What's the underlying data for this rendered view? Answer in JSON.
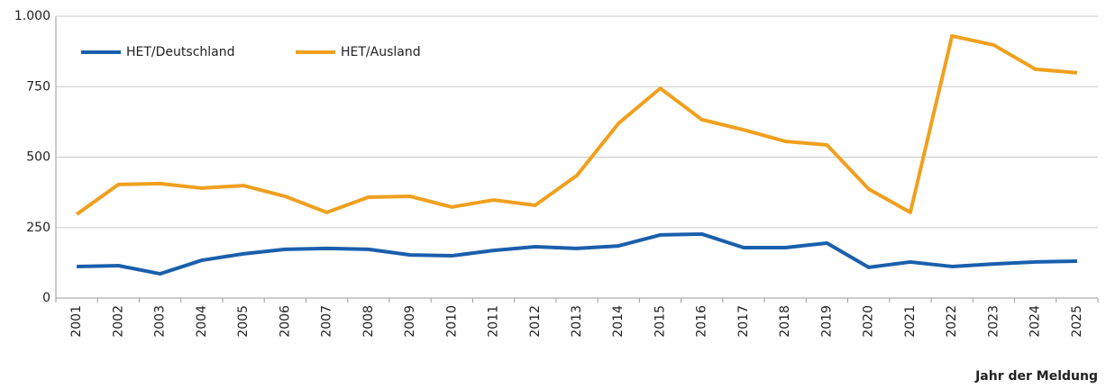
{
  "chart_data": {
    "type": "line",
    "x_label": "Jahr der Meldung",
    "categories": [
      "2001",
      "2002",
      "2003",
      "2004",
      "2005",
      "2006",
      "2007",
      "2008",
      "2009",
      "2010",
      "2011",
      "2012",
      "2013",
      "2014",
      "2015",
      "2016",
      "2017",
      "2018",
      "2019",
      "2020",
      "2021",
      "2022",
      "2023",
      "2024",
      "2025"
    ],
    "series": [
      {
        "name": "HET/Deutschland",
        "color": "#1a5fac",
        "values": [
          112,
          115,
          86,
          134,
          157,
          173,
          176,
          173,
          153,
          150,
          169,
          182,
          176,
          185,
          224,
          227,
          179,
          179,
          195,
          109,
          128,
          112,
          121,
          128,
          131
        ]
      },
      {
        "name": "HET/Ausland",
        "color": "#f0a01e",
        "values": [
          297,
          403,
          406,
          390,
          399,
          361,
          304,
          358,
          361,
          323,
          348,
          329,
          435,
          620,
          744,
          633,
          597,
          556,
          543,
          387,
          304,
          930,
          898,
          812,
          799
        ]
      }
    ],
    "ylim": [
      0,
      1000
    ],
    "yticks": [
      0,
      250,
      500,
      750,
      {
        "value": 1000,
        "label": "1.000"
      }
    ],
    "grid": true,
    "legend": "top-left"
  }
}
